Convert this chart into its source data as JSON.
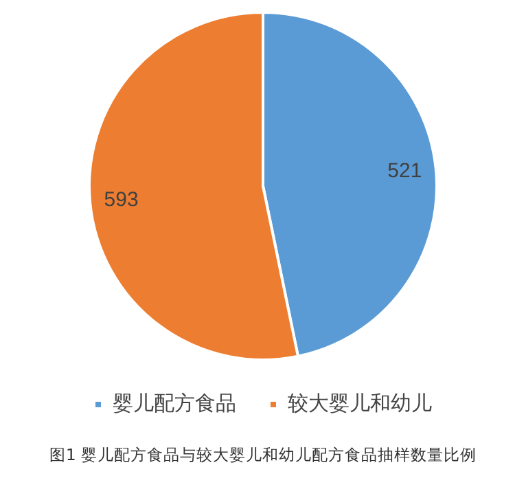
{
  "chart_data": {
    "type": "pie",
    "categories": [
      "婴儿配方食品",
      "较大婴儿和幼儿"
    ],
    "values": [
      521,
      593
    ],
    "colors": [
      "#5b9bd5",
      "#ed7d31"
    ],
    "data_labels": true,
    "legend": "bottom",
    "annotations": [
      "图1 婴儿配方食品与较大婴儿和幼儿配方食品抽样数量比例"
    ]
  }
}
